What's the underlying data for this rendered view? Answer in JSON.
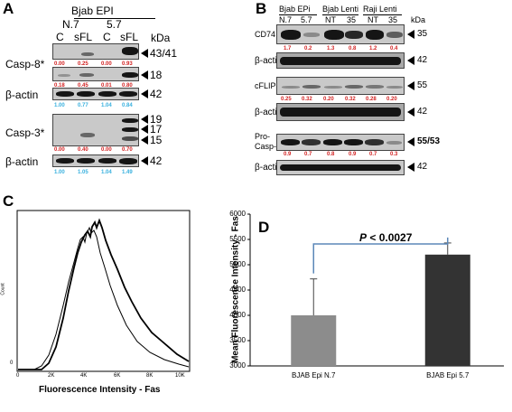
{
  "panelA": {
    "label": "A",
    "header": "Bjab EPI",
    "groups": [
      "N.7",
      "5.7"
    ],
    "lanes": [
      "C",
      "sFL",
      "C",
      "sFL"
    ],
    "kda": "kDa",
    "casp8": {
      "name": "Casp-8*",
      "mw1": "43/41",
      "mw2": "18",
      "q1": [
        "0.00",
        "0.25",
        "0.00",
        "0.93"
      ],
      "q2": [
        "0.18",
        "0.45",
        "0.01",
        "0.80"
      ]
    },
    "actin1": {
      "name": "β-actin",
      "mw": "42",
      "q": [
        "1.00",
        "0.77",
        "1.04",
        "0.84"
      ]
    },
    "casp3": {
      "name": "Casp-3*",
      "mw": [
        "19",
        "17",
        "15"
      ],
      "q": [
        "0.00",
        "0.40",
        "0.00",
        "0.70"
      ]
    },
    "actin2": {
      "name": "β-actin",
      "mw": "42",
      "q": [
        "1.00",
        "1.05",
        "1.04",
        "1.49"
      ]
    }
  },
  "panelB": {
    "label": "B",
    "headers": [
      "Bjab EPi",
      "Bjab Lenti",
      "Raji Lenti"
    ],
    "lanes": [
      "N.7",
      "5.7",
      "NT",
      "35",
      "NT",
      "35"
    ],
    "kda": "kDa",
    "cd74": {
      "name": "CD74",
      "mw": "35",
      "q": [
        "1.7",
        "0.2",
        "1.3",
        "0.8",
        "1.2",
        "0.4"
      ]
    },
    "actin1": {
      "name": "β-actin",
      "mw": "42"
    },
    "cflip": {
      "name": "cFLIP",
      "sub": "L",
      "mw": "55",
      "q": [
        "0.25",
        "0.32",
        "0.20",
        "0.32",
        "0.28",
        "0.20"
      ]
    },
    "actin2": {
      "name": "β-actin",
      "mw": "42"
    },
    "procasp8": {
      "name1": "Pro-",
      "name2": "Casp-8",
      "mw": "55/53",
      "q": [
        "0.9",
        "0.7",
        "0.8",
        "0.9",
        "0.7",
        "0.3"
      ]
    },
    "actin3": {
      "name": "β-actin",
      "mw": "42"
    }
  },
  "panelC": {
    "label": "C",
    "ylabel": "Count",
    "xlabel": "Fluorescence Intensity - Fas",
    "yzero": "0",
    "xticks": [
      "0",
      "2K",
      "4K",
      "6K",
      "8K",
      "10K"
    ]
  },
  "panelD": {
    "label": "D",
    "pvalue_italic": "P",
    "pvalue_rest": " < 0.0027",
    "colors": {
      "bar1": "#8c8c8c",
      "bar2": "#333333",
      "bracket": "#5b87b8"
    }
  },
  "chart_data": {
    "type": "bar",
    "categories": [
      "BJAB Epi N.7",
      "BJAB Epi 5.7"
    ],
    "values": [
      4000,
      5200
    ],
    "error": [
      720,
      230
    ],
    "ylabel": "Mean Fluorescence Intensity - Fas",
    "ylim": [
      3000,
      6000
    ],
    "yticks": [
      "3000",
      "3500",
      "4000",
      "4500",
      "5000",
      "5500",
      "6000"
    ]
  }
}
